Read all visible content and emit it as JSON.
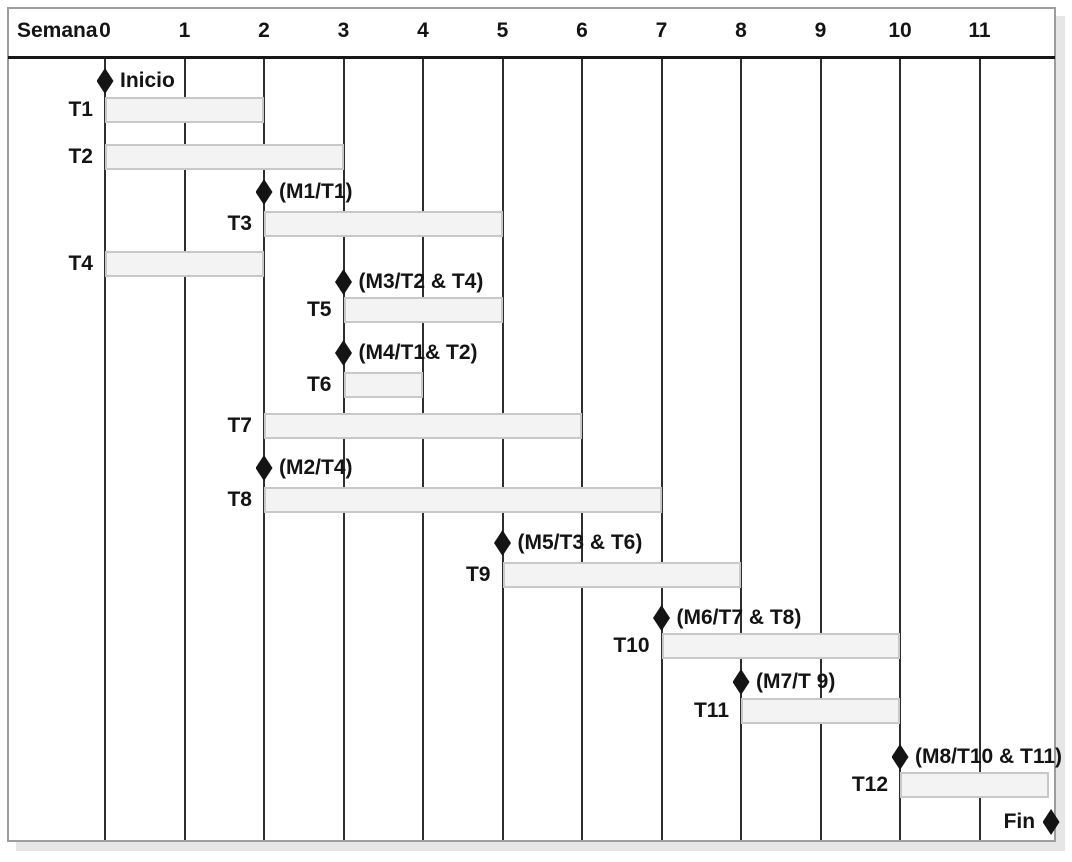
{
  "header": {
    "axis_label": "Semana",
    "week_ticks": [
      "0",
      "1",
      "2",
      "3",
      "4",
      "5",
      "6",
      "7",
      "8",
      "9",
      "10",
      "11"
    ]
  },
  "chart_data": {
    "type": "gantt",
    "orientation": "horizontal",
    "xlabel": "Semana",
    "x_ticks": [
      "0",
      "1",
      "2",
      "3",
      "4",
      "5",
      "6",
      "7",
      "8",
      "9",
      "10",
      "11"
    ],
    "x_range": [
      0,
      11.9
    ],
    "grid": "vertical line at every week",
    "legend": "none",
    "tasks": [
      {
        "id": "T1",
        "start_week": 0,
        "end_week": 2
      },
      {
        "id": "T2",
        "start_week": 0,
        "end_week": 3
      },
      {
        "id": "T3",
        "start_week": 2,
        "end_week": 5
      },
      {
        "id": "T4",
        "start_week": 0,
        "end_week": 2
      },
      {
        "id": "T5",
        "start_week": 3,
        "end_week": 5
      },
      {
        "id": "T6",
        "start_week": 3,
        "end_week": 4
      },
      {
        "id": "T7",
        "start_week": 2,
        "end_week": 6
      },
      {
        "id": "T8",
        "start_week": 2,
        "end_week": 7
      },
      {
        "id": "T9",
        "start_week": 5,
        "end_week": 8
      },
      {
        "id": "T10",
        "start_week": 7,
        "end_week": 10
      },
      {
        "id": "T11",
        "start_week": 8,
        "end_week": 10
      },
      {
        "id": "T12",
        "start_week": 10,
        "end_week": 11.88
      }
    ],
    "milestones": [
      {
        "id": "Inicio",
        "label": "Inicio",
        "week": 0,
        "label_side": "right"
      },
      {
        "id": "M1",
        "label": "(M1/T1)",
        "week": 2,
        "label_side": "right"
      },
      {
        "id": "M3",
        "label": "(M3/T2 & T4)",
        "week": 3,
        "label_side": "right"
      },
      {
        "id": "M4",
        "label": "(M4/T1& T2)",
        "week": 3,
        "label_side": "right"
      },
      {
        "id": "M2",
        "label": "(M2/T4)",
        "week": 2,
        "label_side": "right"
      },
      {
        "id": "M5",
        "label": "(M5/T3 & T6)",
        "week": 5,
        "label_side": "right"
      },
      {
        "id": "M6",
        "label": "(M6/T7 & T8)",
        "week": 7,
        "label_side": "right"
      },
      {
        "id": "M7",
        "label": "(M7/T 9)",
        "week": 8,
        "label_side": "right"
      },
      {
        "id": "M8",
        "label": "(M8/T10 & T11)",
        "week": 10,
        "label_side": "right"
      },
      {
        "id": "Fin",
        "label": "Fin",
        "week": 11.9,
        "label_side": "left"
      }
    ]
  },
  "colors": {
    "text": "#141414",
    "bar_fill": "#f3f3f3",
    "bar_border": "#c8c8c8",
    "milestone": "#141414",
    "gridline": "#2e2e2e",
    "header_divider": "#171717",
    "panel_border": "#9d9d9d",
    "panel_shadow": "#e6e6e6"
  }
}
